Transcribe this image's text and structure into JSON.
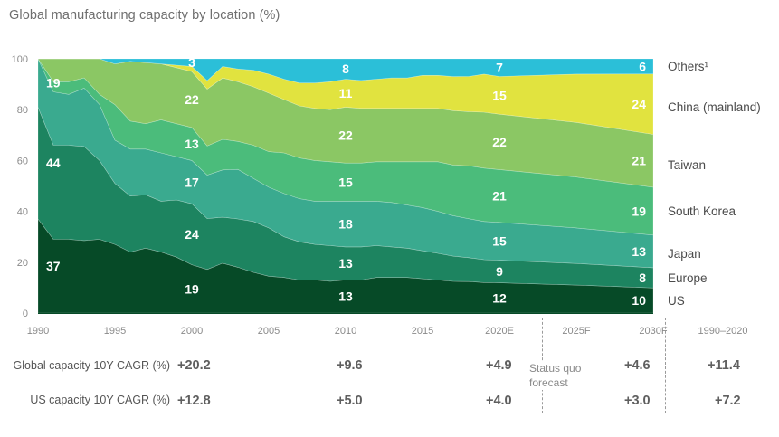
{
  "title": "Global manufacturing capacity by location (%)",
  "chart_data": {
    "type": "area",
    "stacked": true,
    "title": "Global manufacturing capacity by location (%)",
    "xlabel": "",
    "ylabel": "",
    "ylim": [
      0,
      100
    ],
    "yticks": [
      0,
      20,
      40,
      60,
      80,
      100
    ],
    "x": [
      1990,
      1991,
      1992,
      1993,
      1994,
      1995,
      1996,
      1997,
      1998,
      1999,
      2000,
      2001,
      2002,
      2003,
      2004,
      2005,
      2006,
      2007,
      2008,
      2009,
      2010,
      2011,
      2012,
      2013,
      2014,
      2015,
      2016,
      2017,
      2018,
      2019,
      2020,
      2025,
      2030
    ],
    "xtick_labels": [
      {
        "x": 1990,
        "label": "1990"
      },
      {
        "x": 1995,
        "label": "1995"
      },
      {
        "x": 2000,
        "label": "2000"
      },
      {
        "x": 2005,
        "label": "2005"
      },
      {
        "x": 2010,
        "label": "2010"
      },
      {
        "x": 2015,
        "label": "2015"
      },
      {
        "x": 2020,
        "label": "2020E"
      },
      {
        "x": 2025,
        "label": "2025F"
      },
      {
        "x": 2030,
        "label": "2030F"
      }
    ],
    "series": [
      {
        "name": "US",
        "color": "#064a27",
        "values": [
          37,
          29,
          29,
          28.5,
          29,
          27,
          24,
          25.5,
          24,
          22,
          19,
          18,
          19.5,
          18,
          16,
          14.5,
          14,
          13,
          13,
          12.5,
          13,
          13,
          14,
          14,
          14,
          13.5,
          13,
          12.5,
          12.5,
          12,
          12,
          11,
          10
        ]
      },
      {
        "name": "Europe",
        "color": "#1d8460",
        "values": [
          44,
          37,
          37,
          37,
          31,
          24,
          22,
          21,
          20,
          22.5,
          24,
          21,
          18,
          19,
          20,
          19,
          16,
          15,
          14,
          14,
          13,
          13,
          12.5,
          12,
          11.5,
          11,
          10.5,
          10,
          9.5,
          9,
          9,
          8.5,
          8
        ]
      },
      {
        "name": "Japan",
        "color": "#3aaa8f",
        "values": [
          19,
          21,
          20,
          23,
          22,
          17,
          18.5,
          18,
          19,
          17,
          17,
          18,
          18.5,
          19.5,
          17,
          16,
          17,
          17,
          17,
          17.5,
          18,
          18,
          17.5,
          17.5,
          17,
          17,
          16.5,
          16,
          15.5,
          15,
          15,
          14,
          13
        ]
      },
      {
        "name": "South Korea",
        "color": "#4bbc7b",
        "values": [
          0,
          4,
          5,
          4,
          4,
          14,
          11,
          10,
          13,
          13,
          13,
          12,
          12,
          11,
          13,
          14,
          16,
          16,
          16,
          15.5,
          15,
          15,
          15.5,
          16,
          17,
          18,
          19.5,
          20,
          21,
          21,
          21,
          20,
          19
        ]
      },
      {
        "name": "Taiwan",
        "color": "#8bc764",
        "values": [
          0,
          9,
          9,
          7.5,
          14,
          16,
          23.5,
          24,
          22,
          22,
          22,
          23.5,
          24,
          23.5,
          23,
          23,
          21,
          20.5,
          20.5,
          20.5,
          22,
          21.5,
          21,
          21,
          21,
          21,
          21,
          21.5,
          21.5,
          22,
          22,
          21.5,
          21
        ]
      },
      {
        "name": "China (mainland)",
        "color": "#e1e33f",
        "values": [
          0,
          0,
          0,
          0,
          0,
          0,
          0,
          0,
          0,
          1,
          2,
          3.5,
          4.5,
          5,
          6.5,
          7.5,
          8,
          9,
          10,
          11,
          11,
          11,
          11.5,
          12,
          12,
          13,
          13,
          13.5,
          14,
          15,
          15,
          19,
          24
        ]
      },
      {
        "name": "Others¹",
        "color": "#2bbfd8",
        "values": [
          0,
          0,
          0,
          0,
          0,
          2,
          1,
          1.5,
          2,
          2.5,
          3,
          9,
          3,
          4,
          4.5,
          6,
          8,
          9.5,
          9.5,
          9,
          8,
          8.5,
          8,
          7.5,
          7.5,
          6.5,
          6.5,
          7,
          7,
          6,
          7,
          6,
          6
        ]
      }
    ],
    "data_labels": [
      {
        "series": "US",
        "x": 1990,
        "value": "37"
      },
      {
        "series": "Europe",
        "x": 1990,
        "value": "44"
      },
      {
        "series": "Japan",
        "x": 1990,
        "value": "19"
      },
      {
        "series": "US",
        "x": 2000,
        "value": "19"
      },
      {
        "series": "Europe",
        "x": 2000,
        "value": "24"
      },
      {
        "series": "Japan",
        "x": 2000,
        "value": "17"
      },
      {
        "series": "South Korea",
        "x": 2000,
        "value": "13"
      },
      {
        "series": "Taiwan",
        "x": 2000,
        "value": "22"
      },
      {
        "series": "Others¹",
        "x": 2000,
        "value": "3"
      },
      {
        "series": "US",
        "x": 2010,
        "value": "13"
      },
      {
        "series": "Europe",
        "x": 2010,
        "value": "13"
      },
      {
        "series": "Japan",
        "x": 2010,
        "value": "18"
      },
      {
        "series": "South Korea",
        "x": 2010,
        "value": "15"
      },
      {
        "series": "Taiwan",
        "x": 2010,
        "value": "22"
      },
      {
        "series": "China (mainland)",
        "x": 2010,
        "value": "11"
      },
      {
        "series": "Others¹",
        "x": 2010,
        "value": "8"
      },
      {
        "series": "US",
        "x": 2020,
        "value": "12"
      },
      {
        "series": "Europe",
        "x": 2020,
        "value": "9"
      },
      {
        "series": "Japan",
        "x": 2020,
        "value": "15"
      },
      {
        "series": "South Korea",
        "x": 2020,
        "value": "21"
      },
      {
        "series": "Taiwan",
        "x": 2020,
        "value": "22"
      },
      {
        "series": "China (mainland)",
        "x": 2020,
        "value": "15"
      },
      {
        "series": "Others¹",
        "x": 2020,
        "value": "7"
      },
      {
        "series": "US",
        "x": 2030,
        "value": "10"
      },
      {
        "series": "Europe",
        "x": 2030,
        "value": "8"
      },
      {
        "series": "Japan",
        "x": 2030,
        "value": "13"
      },
      {
        "series": "South Korea",
        "x": 2030,
        "value": "19"
      },
      {
        "series": "Taiwan",
        "x": 2030,
        "value": "21"
      },
      {
        "series": "China (mainland)",
        "x": 2030,
        "value": "24"
      },
      {
        "series": "Others¹",
        "x": 2030,
        "value": "6"
      }
    ],
    "legend": [
      "Others¹",
      "China (mainland)",
      "Taiwan",
      "South Korea",
      "Japan",
      "Europe",
      "US"
    ],
    "legend_position": "right",
    "grid": false
  },
  "cagr_table": {
    "period_label": "1990–2020",
    "rows": [
      {
        "label": "Global capacity 10Y CAGR (%)",
        "values": {
          "2000": "+20.2",
          "2010": "+9.6",
          "2020E": "+4.9",
          "2030F": "+4.6",
          "1990–2020": "+11.4"
        }
      },
      {
        "label": "US capacity 10Y CAGR (%)",
        "values": {
          "2000": "+12.8",
          "2010": "+5.0",
          "2020E": "+4.0",
          "2030F": "+3.0",
          "1990–2020": "+7.2"
        }
      }
    ]
  },
  "forecast_note": "Status quo forecast"
}
